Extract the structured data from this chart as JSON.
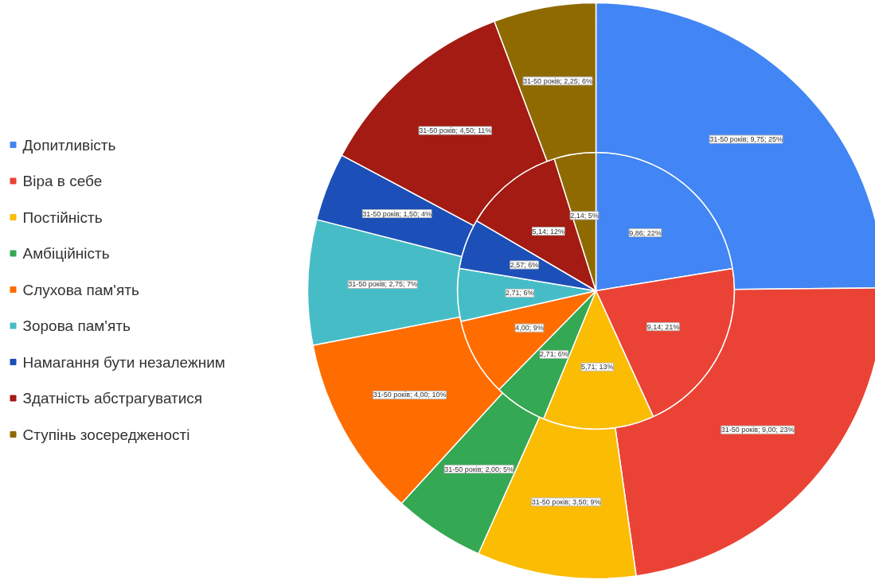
{
  "chart_data": {
    "type": "pie",
    "categories": [
      "Допитливість",
      "Віра в себе",
      "Постійність",
      "Амбіційність",
      "Слухова пам'ять",
      "Зорова пам'ять",
      "Намагання бути незалежним",
      "Здатність абстрагуватися",
      "Ступінь зосередженості"
    ],
    "colors": [
      "#4285f4",
      "#ea4335",
      "#fbbc04",
      "#34a853",
      "#ff6d01",
      "#46bdc6",
      "#1c4fb8",
      "#a31b12",
      "#8f6a00"
    ],
    "series": [
      {
        "values": [
          9.86,
          9.14,
          5.71,
          2.71,
          4.0,
          2.71,
          2.57,
          5.14,
          2.14
        ],
        "value_labels": [
          "9,86; 22%",
          "9,14; 21%",
          "5,71; 13%",
          "2,71; 6%",
          "4,00; 9%",
          "2,71; 6%",
          "2,57; 6%",
          "5,14; 12%",
          "2,14; 5%"
        ]
      },
      {
        "values": [
          9.75,
          9.0,
          3.5,
          2.0,
          4.0,
          2.75,
          1.5,
          4.5,
          2.25
        ],
        "value_labels": [
          "31-50 років; 9,75; 25%",
          "31-50 років; 9,00; 23%",
          "31-50 років; 3,50; 9%",
          "31-50 років; 2,00; 5%",
          "31-50 років; 4,00; 10%",
          "31-50 років; 2,75; 7%",
          "31-50 років; 1,50; 4%",
          "31-50 років; 4,50; 11%",
          "31-50 років; 2,25; 6%"
        ]
      }
    ],
    "legend": "left"
  }
}
